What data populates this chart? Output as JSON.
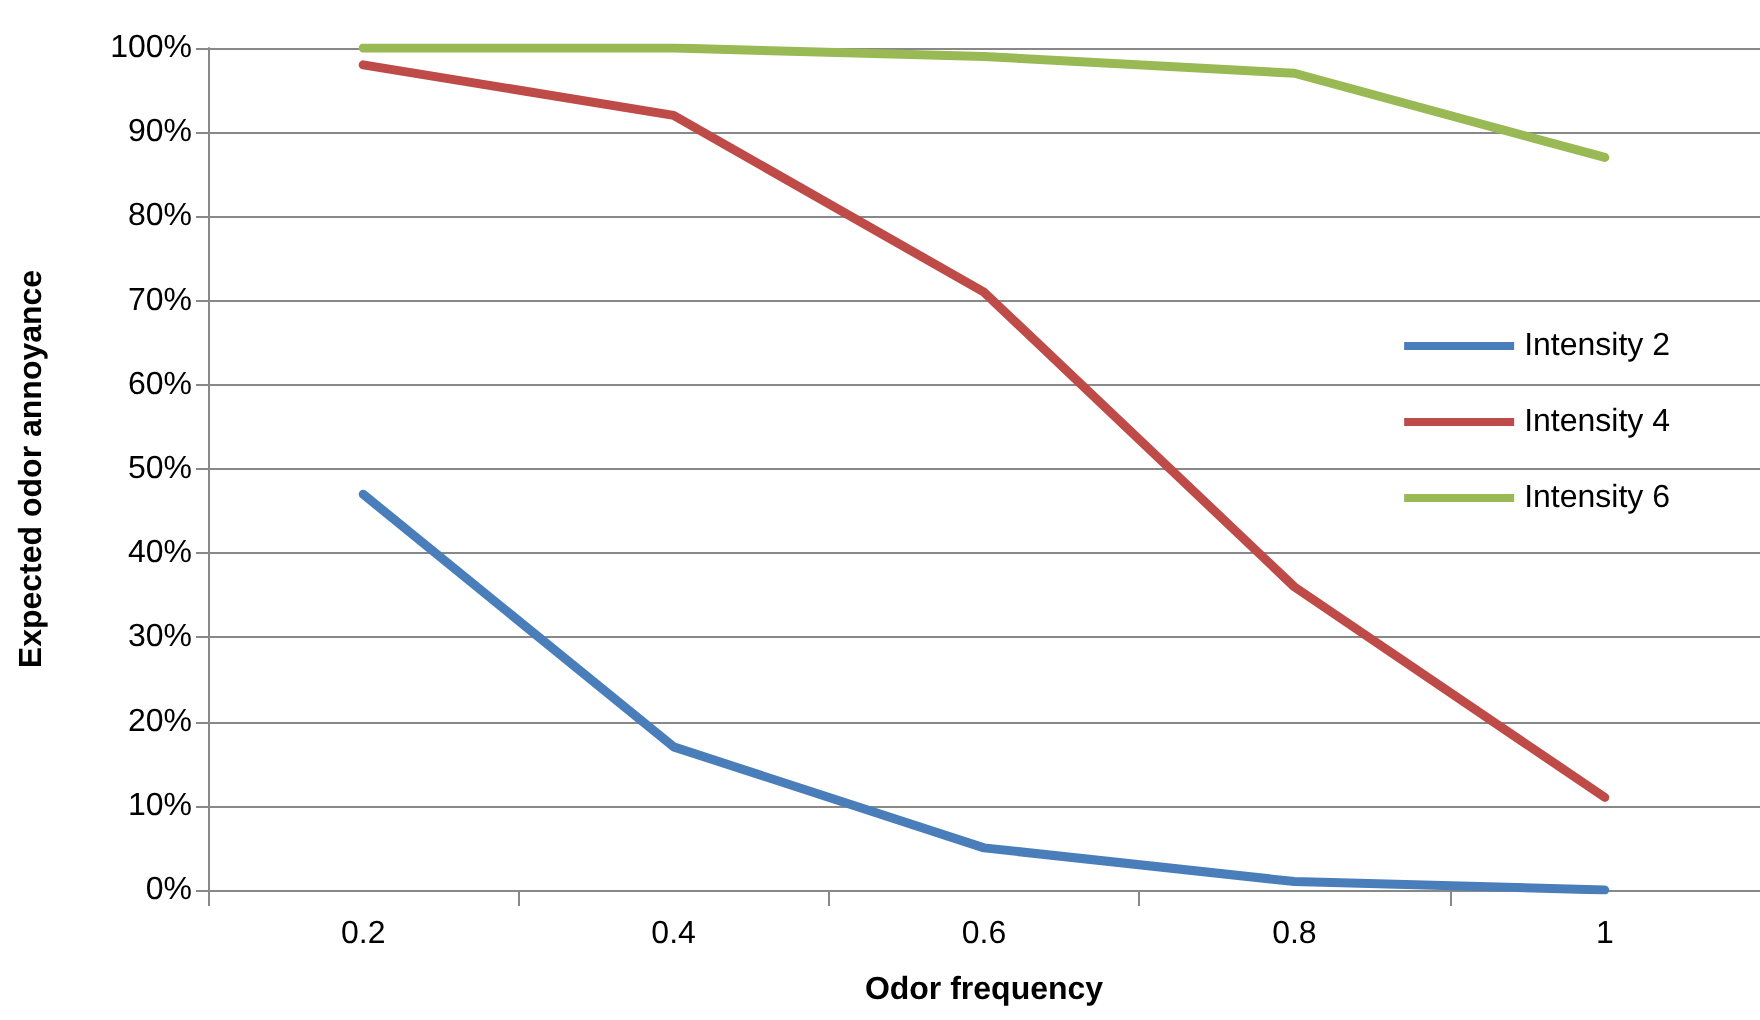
{
  "chart_data": {
    "type": "line",
    "xlabel": "Odor frequency",
    "ylabel": "Expected odor annoyance",
    "categories": [
      "0.2",
      "0.4",
      "0.6",
      "0.8",
      "1"
    ],
    "series": [
      {
        "name": "Intensity 2",
        "color": "#4a7ebb",
        "values": [
          47,
          17,
          5,
          1,
          0
        ]
      },
      {
        "name": "Intensity 4",
        "color": "#be4b48",
        "values": [
          98,
          92,
          71,
          36,
          11
        ]
      },
      {
        "name": "Intensity 6",
        "color": "#98b954",
        "values": [
          100,
          100,
          99,
          97,
          87
        ]
      }
    ],
    "ylim": [
      0,
      100
    ],
    "yticks": [
      {
        "value": 0,
        "label": "0%"
      },
      {
        "value": 10,
        "label": "10%"
      },
      {
        "value": 20,
        "label": "20%"
      },
      {
        "value": 30,
        "label": "30%"
      },
      {
        "value": 40,
        "label": "40%"
      },
      {
        "value": 50,
        "label": "50%"
      },
      {
        "value": 60,
        "label": "60%"
      },
      {
        "value": 70,
        "label": "70%"
      },
      {
        "value": 80,
        "label": "80%"
      },
      {
        "value": 90,
        "label": "90%"
      },
      {
        "value": 100,
        "label": "100%"
      }
    ],
    "grid": "y",
    "legend": "right",
    "marker": "none",
    "line_style": "solid"
  }
}
